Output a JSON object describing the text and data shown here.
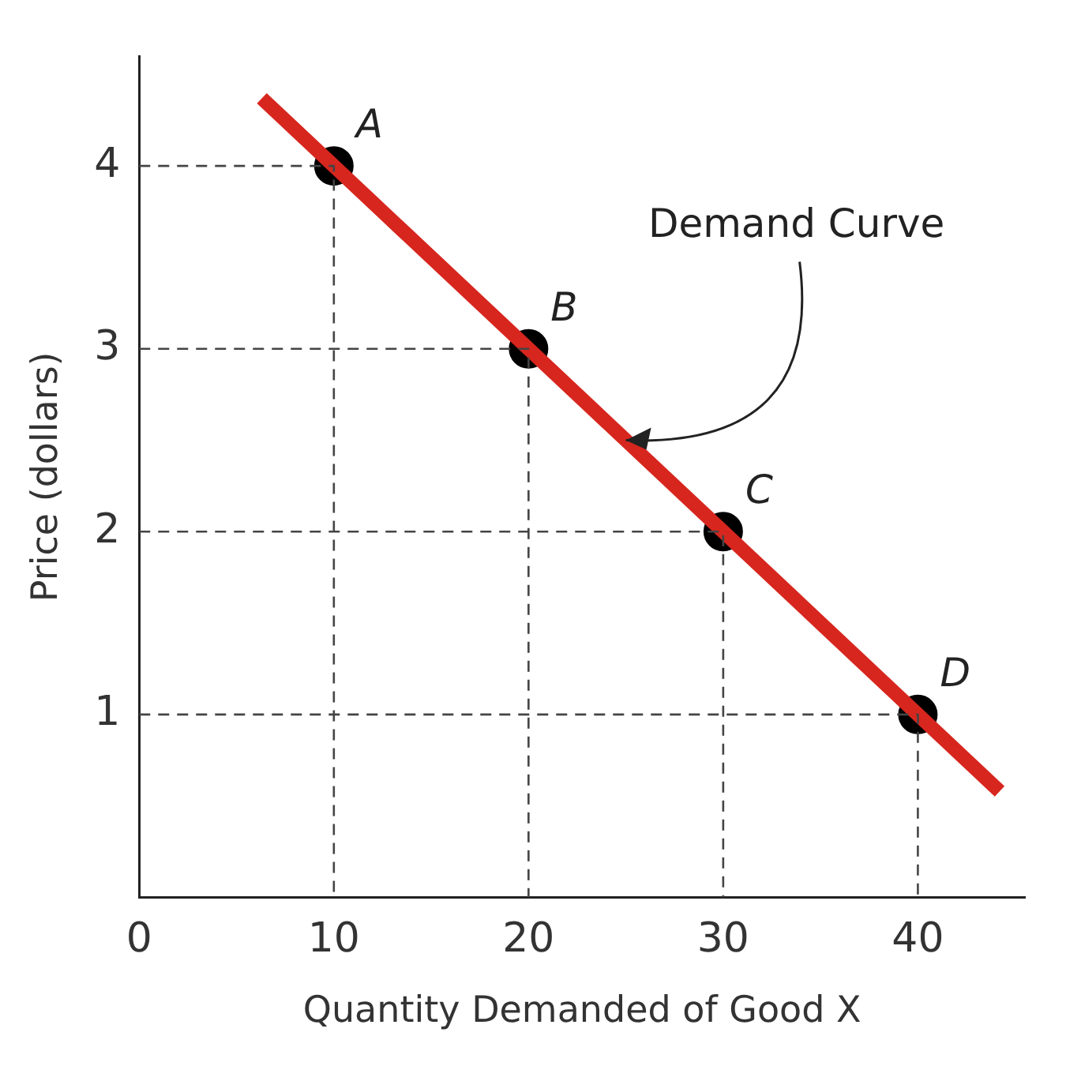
{
  "chart_data": {
    "type": "scatter",
    "xlabel": "Quantity Demanded of Good X",
    "ylabel": "Price (dollars)",
    "xlim": [
      0,
      45.5
    ],
    "ylim": [
      0,
      4.6
    ],
    "xticks": [
      0,
      10,
      20,
      30,
      40
    ],
    "yticks": [
      1,
      2,
      3,
      4
    ],
    "legend": false,
    "series": [
      {
        "type": "line",
        "marker": "none",
        "line_style": "dashed",
        "color": "#444444",
        "x": [
          0,
          10,
          10
        ],
        "values": [
          4,
          4,
          0
        ]
      },
      {
        "type": "line",
        "marker": "none",
        "line_style": "dashed",
        "color": "#444444",
        "x": [
          0,
          20,
          20
        ],
        "values": [
          3,
          3,
          0
        ]
      },
      {
        "type": "line",
        "marker": "none",
        "line_style": "dashed",
        "color": "#444444",
        "x": [
          0,
          30,
          30
        ],
        "values": [
          2,
          2,
          0
        ]
      },
      {
        "type": "line",
        "marker": "none",
        "line_style": "dashed",
        "color": "#444444",
        "x": [
          0,
          40,
          40
        ],
        "values": [
          1,
          1,
          0
        ]
      },
      {
        "type": "line",
        "marker": "none",
        "line_style": "solid",
        "color": "#d7261e",
        "x": [
          6.3,
          44.2
        ],
        "values": [
          4.37,
          0.58
        ]
      },
      {
        "marker": "circle",
        "color": "#000000",
        "x": [
          10,
          20,
          30,
          40
        ],
        "values": [
          4,
          3,
          2,
          1
        ],
        "value_labels": [
          "A",
          "B",
          "C",
          "D"
        ]
      }
    ],
    "annotations": [
      {
        "text": "Demand Curve",
        "x": 25,
        "y": 2.5
      }
    ]
  }
}
